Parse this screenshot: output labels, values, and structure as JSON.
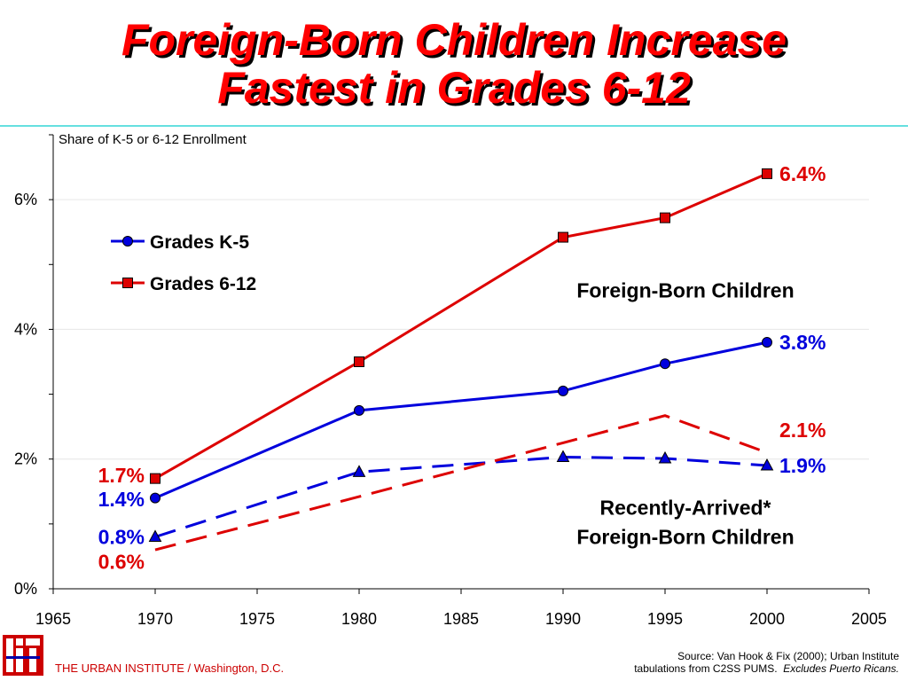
{
  "title_line1": "Foreign-Born Children Increase",
  "title_line2": "Fastest in Grades 6-12",
  "footer": {
    "org": "THE URBAN INSTITUTE / Washington, D.C.",
    "source_line1": "Source: Van Hook & Fix (2000); Urban Institute",
    "source_line2a": "tabulations from C2SS PUMS.",
    "source_line2b": "Excludes Puerto Ricans."
  },
  "colors": {
    "k5": "#0000dd",
    "g612": "#dd0000",
    "title": "#ff0000",
    "rule": "#66e0e0"
  },
  "icons": {
    "logo": "urban-institute-logo-icon"
  },
  "chart_data": {
    "type": "line",
    "ylabel": "Share of K-5 or 6-12 Enrollment",
    "xlim": [
      1965,
      2005
    ],
    "ylim": [
      0,
      7
    ],
    "x_ticks": [
      1965,
      1970,
      1975,
      1980,
      1985,
      1990,
      1995,
      2000,
      2005
    ],
    "x_tick_labels": [
      "1965",
      "1970",
      "1975",
      "1980",
      "1985",
      "1990",
      "1995",
      "2000",
      "2005"
    ],
    "y_ticks": [
      0,
      2,
      4,
      6
    ],
    "y_tick_labels": [
      "0%",
      "2%",
      "4%",
      "6%"
    ],
    "grid": "horizontal",
    "legend": {
      "placement": "top-left",
      "entries": [
        {
          "name": "Grades K-5",
          "color": "#0000dd",
          "marker": "circle"
        },
        {
          "name": "Grades 6-12",
          "color": "#dd0000",
          "marker": "square"
        }
      ]
    },
    "series": [
      {
        "group": "foreign-born",
        "grade": "K-5",
        "color": "#0000dd",
        "dash": "solid",
        "marker": "circle",
        "x": [
          1970,
          1980,
          1990,
          1995,
          2000
        ],
        "values": [
          1.4,
          2.75,
          3.05,
          3.47,
          3.8
        ]
      },
      {
        "group": "foreign-born",
        "grade": "6-12",
        "color": "#dd0000",
        "dash": "solid",
        "marker": "square",
        "x": [
          1970,
          1980,
          1990,
          1995,
          2000
        ],
        "values": [
          1.7,
          3.5,
          5.42,
          5.72,
          6.4
        ]
      },
      {
        "group": "recently-arrived",
        "grade": "K-5",
        "color": "#0000dd",
        "dash": "dashed",
        "marker": "triangle",
        "x": [
          1970,
          1980,
          1990,
          1995,
          2000
        ],
        "values": [
          0.8,
          1.8,
          2.03,
          2.01,
          1.9
        ]
      },
      {
        "group": "recently-arrived",
        "grade": "6-12",
        "color": "#dd0000",
        "dash": "dashed",
        "marker": "none",
        "x": [
          1970,
          1980,
          1990,
          1995,
          2000
        ],
        "values": [
          0.6,
          1.42,
          2.25,
          2.67,
          2.1
        ]
      }
    ],
    "annotations": [
      {
        "text": "6.4%",
        "x": 2000,
        "y": 6.4,
        "color": "#dd0000",
        "align": "left"
      },
      {
        "text": "3.8%",
        "x": 2000,
        "y": 3.8,
        "color": "#0000dd",
        "align": "left"
      },
      {
        "text": "2.1%",
        "x": 2000,
        "y": 2.45,
        "color": "#dd0000",
        "align": "left"
      },
      {
        "text": "1.9%",
        "x": 2000,
        "y": 1.9,
        "color": "#0000dd",
        "align": "left"
      },
      {
        "text": "1.7%",
        "x": 1970,
        "y": 1.75,
        "color": "#dd0000",
        "align": "right"
      },
      {
        "text": "1.4%",
        "x": 1970,
        "y": 1.38,
        "color": "#0000dd",
        "align": "right"
      },
      {
        "text": "0.8%",
        "x": 1970,
        "y": 0.8,
        "color": "#0000dd",
        "align": "right"
      },
      {
        "text": "0.6%",
        "x": 1970,
        "y": 0.42,
        "color": "#dd0000",
        "align": "right"
      },
      {
        "text": "Foreign-Born Children",
        "x": 1996,
        "y": 4.6,
        "color": "#000000",
        "align": "center"
      },
      {
        "text": "Recently-Arrived*",
        "x": 1996,
        "y": 1.25,
        "color": "#000000",
        "align": "center"
      },
      {
        "text": "Foreign-Born Children",
        "x": 1996,
        "y": 0.8,
        "color": "#000000",
        "align": "center"
      }
    ]
  }
}
